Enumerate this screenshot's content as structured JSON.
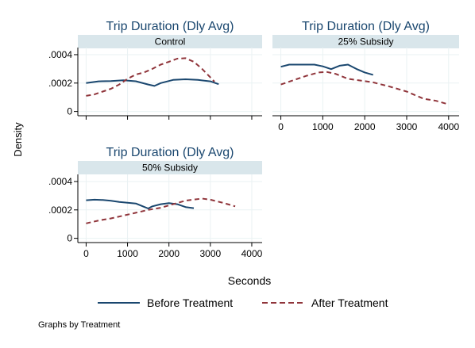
{
  "chart_data": {
    "type": "line",
    "ylabel": "Density",
    "xlabel": "Seconds",
    "footnote": "Graphs by Treatment",
    "y_ticks": [
      {
        "value": 0,
        "label": "0"
      },
      {
        "value": 0.0002,
        "label": ".0002"
      },
      {
        "value": 0.0004,
        "label": ".0004"
      }
    ],
    "x_ticks": [
      {
        "value": 0,
        "label": "0"
      },
      {
        "value": 1000,
        "label": "1000"
      },
      {
        "value": 2000,
        "label": "2000"
      },
      {
        "value": 3000,
        "label": "3000"
      },
      {
        "value": 4000,
        "label": "4000"
      }
    ],
    "xlim": [
      -200,
      4250
    ],
    "ylim": [
      -3e-05,
      0.00045
    ],
    "legend": {
      "position": "bottom",
      "entries": [
        {
          "name": "Before Treatment",
          "color": "#1a476f",
          "dash": "solid"
        },
        {
          "name": "After Treatment",
          "color": "#90353b",
          "dash": "dashed"
        }
      ]
    },
    "panels": [
      {
        "title": "Trip Duration (Dly Avg)",
        "subtitle": "Control",
        "x_axis_labels_shown": false,
        "series": [
          {
            "name": "Before Treatment",
            "x": [
              0,
              300,
              600,
              900,
              1200,
              1500,
              1650,
              1800,
              2100,
              2400,
              2700,
              3000,
              3200
            ],
            "y": [
              0.0002,
              0.000212,
              0.000214,
              0.00022,
              0.000213,
              0.00019,
              0.00018,
              0.0002,
              0.000222,
              0.000227,
              0.000222,
              0.000212,
              0.000192
            ]
          },
          {
            "name": "After Treatment",
            "x": [
              0,
              200,
              400,
              600,
              800,
              1000,
              1200,
              1400,
              1600,
              1800,
              2000,
              2200,
              2400,
              2600,
              2800,
              3000,
              3100
            ],
            "y": [
              0.00011,
              0.00012,
              0.00014,
              0.00016,
              0.00019,
              0.00023,
              0.00026,
              0.000275,
              0.0003,
              0.00033,
              0.00035,
              0.000372,
              0.000375,
              0.00035,
              0.0003,
              0.00024,
              0.00021
            ]
          }
        ]
      },
      {
        "title": "Trip Duration (Dly Avg)",
        "subtitle": "25% Subsidy",
        "x_axis_labels_shown": true,
        "series": [
          {
            "name": "Before Treatment",
            "x": [
              0,
              200,
              400,
              600,
              800,
              1000,
              1200,
              1400,
              1600,
              1800,
              2000,
              2200
            ],
            "y": [
              0.000315,
              0.00033,
              0.00033,
              0.00033,
              0.00033,
              0.000318,
              0.000298,
              0.000322,
              0.00033,
              0.0003,
              0.000275,
              0.000258
            ]
          },
          {
            "name": "After Treatment",
            "x": [
              0,
              300,
              600,
              900,
              1100,
              1300,
              1600,
              1900,
              2200,
              2600,
              3000,
              3400,
              3700,
              4000
            ],
            "y": [
              0.00019,
              0.00022,
              0.00025,
              0.000275,
              0.000278,
              0.000265,
              0.00023,
              0.000218,
              0.000205,
              0.000175,
              0.00014,
              9e-05,
              7.5e-05,
              5e-05
            ]
          }
        ]
      },
      {
        "title": "Trip Duration (Dly Avg)",
        "subtitle": "50% Subsidy",
        "x_axis_labels_shown": true,
        "series": [
          {
            "name": "Before Treatment",
            "x": [
              0,
              200,
              400,
              600,
              800,
              1000,
              1200,
              1400,
              1500,
              1600,
              1800,
              2000,
              2200,
              2400,
              2600
            ],
            "y": [
              0.000268,
              0.000272,
              0.00027,
              0.000264,
              0.000256,
              0.00025,
              0.000245,
              0.000222,
              0.00021,
              0.000225,
              0.00024,
              0.000248,
              0.00024,
              0.00022,
              0.000212
            ]
          },
          {
            "name": "After Treatment",
            "x": [
              0,
              300,
              600,
              900,
              1200,
              1500,
              1800,
              2100,
              2400,
              2800,
              3000,
              3300,
              3600
            ],
            "y": [
              0.000105,
              0.000125,
              0.00014,
              0.00016,
              0.00018,
              0.0002,
              0.000215,
              0.00024,
              0.000265,
              0.00028,
              0.000272,
              0.00025,
              0.000225
            ]
          }
        ]
      }
    ]
  }
}
